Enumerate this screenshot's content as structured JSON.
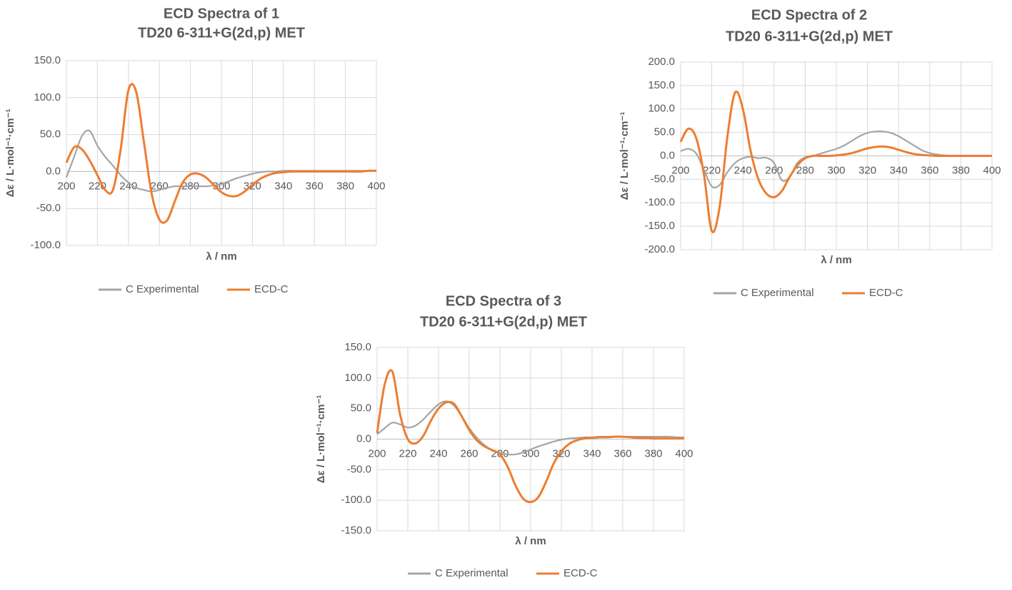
{
  "chart_data": [
    {
      "type": "line",
      "title": "ECD Spectra of 1",
      "subtitle": "TD20 6-311+G(2d,p) MET",
      "x_label": "λ / nm",
      "y_label": "Δε / L·mol⁻¹·cm⁻¹",
      "x": [
        200,
        205,
        210,
        215,
        220,
        225,
        230,
        235,
        240,
        245,
        250,
        255,
        260,
        265,
        270,
        275,
        280,
        285,
        290,
        295,
        300,
        305,
        310,
        315,
        320,
        325,
        330,
        335,
        340,
        345,
        350,
        355,
        360,
        365,
        370,
        375,
        380,
        385,
        390,
        395,
        400
      ],
      "series": [
        {
          "name": "C Experimental",
          "color": "#a5a5a5",
          "values": [
            -8,
            20,
            48,
            55,
            35,
            20,
            8,
            -5,
            -15,
            -22,
            -25,
            -27,
            -25,
            -22,
            -20,
            -20,
            -20,
            -20,
            -20,
            -19,
            -17,
            -13,
            -9,
            -6,
            -3,
            -1,
            0,
            0,
            1,
            1,
            1,
            1,
            1,
            1,
            1,
            1,
            1,
            1,
            1,
            1,
            1
          ]
        },
        {
          "name": "ECD-C",
          "color": "#ed7d31",
          "values": [
            12,
            33,
            30,
            15,
            -5,
            -25,
            -25,
            30,
            110,
            108,
            40,
            -30,
            -65,
            -66,
            -40,
            -15,
            -4,
            -3,
            -8,
            -18,
            -28,
            -33,
            -33,
            -27,
            -18,
            -10,
            -5,
            -2,
            -1,
            0,
            0,
            0,
            0,
            0,
            0,
            0,
            0,
            0,
            0,
            1,
            1
          ]
        }
      ],
      "xlim": [
        200,
        400
      ],
      "xticks": [
        200,
        220,
        240,
        260,
        280,
        300,
        320,
        340,
        360,
        380,
        400
      ],
      "ylim": [
        -100,
        150
      ],
      "yticks": [
        {
          "value": -100,
          "label": "-100.0"
        },
        {
          "value": -50,
          "label": "-50.0"
        },
        {
          "value": 0,
          "label": "0.0"
        },
        {
          "value": 50,
          "label": "50.0"
        },
        {
          "value": 100,
          "label": "100.0"
        },
        {
          "value": 150,
          "label": "150.0"
        }
      ],
      "grid": true,
      "legend": "bottom"
    },
    {
      "type": "line",
      "title": "ECD Spectra of 2",
      "subtitle": "TD20 6-311+G(2d,p) MET",
      "x_label": "λ / nm",
      "y_label": "Δε / L·mol⁻¹·cm⁻¹",
      "x": [
        200,
        205,
        210,
        215,
        220,
        225,
        230,
        235,
        240,
        245,
        250,
        255,
        260,
        265,
        270,
        275,
        280,
        285,
        290,
        295,
        300,
        305,
        310,
        315,
        320,
        325,
        330,
        335,
        340,
        345,
        350,
        355,
        360,
        365,
        370,
        375,
        380,
        385,
        390,
        395,
        400
      ],
      "series": [
        {
          "name": "C Experimental",
          "color": "#a5a5a5",
          "values": [
            10,
            15,
            5,
            -30,
            -65,
            -62,
            -35,
            -15,
            -5,
            -2,
            -5,
            -4,
            -15,
            -52,
            -45,
            -15,
            -3,
            0,
            5,
            10,
            15,
            22,
            32,
            42,
            49,
            52,
            52,
            49,
            42,
            32,
            22,
            12,
            6,
            3,
            1,
            0,
            0,
            0,
            0,
            0,
            0
          ]
        },
        {
          "name": "ECD-C",
          "color": "#ed7d31",
          "values": [
            30,
            58,
            38,
            -40,
            -160,
            -110,
            40,
            135,
            100,
            10,
            -50,
            -80,
            -88,
            -75,
            -45,
            -20,
            -5,
            0,
            0,
            0,
            1,
            3,
            6,
            11,
            16,
            19,
            20,
            18,
            13,
            8,
            4,
            2,
            1,
            0,
            0,
            0,
            0,
            0,
            0,
            0,
            0
          ]
        }
      ],
      "xlim": [
        200,
        400
      ],
      "xticks": [
        200,
        220,
        240,
        260,
        280,
        300,
        320,
        340,
        360,
        380,
        400
      ],
      "ylim": [
        -200,
        200
      ],
      "yticks": [
        {
          "value": -200,
          "label": "-200.0"
        },
        {
          "value": -150,
          "label": "-150.0"
        },
        {
          "value": -100,
          "label": "-100.0"
        },
        {
          "value": -50,
          "label": "-50.0"
        },
        {
          "value": 0,
          "label": "0.0"
        },
        {
          "value": 50,
          "label": "50.0"
        },
        {
          "value": 100,
          "label": "100.0"
        },
        {
          "value": 150,
          "label": "150.0"
        },
        {
          "value": 200,
          "label": "200.0"
        }
      ],
      "grid": true,
      "legend": "bottom"
    },
    {
      "type": "line",
      "title": "ECD Spectra of 3",
      "subtitle": "TD20 6-311+G(2d,p) MET",
      "x_label": "λ / nm",
      "y_label": "Δε / L·mol⁻¹·cm⁻¹",
      "x": [
        200,
        205,
        210,
        215,
        220,
        225,
        230,
        235,
        240,
        245,
        250,
        255,
        260,
        265,
        270,
        275,
        280,
        285,
        290,
        295,
        300,
        305,
        310,
        315,
        320,
        325,
        330,
        335,
        340,
        345,
        350,
        355,
        360,
        365,
        370,
        375,
        380,
        385,
        390,
        395,
        400
      ],
      "series": [
        {
          "name": "C Experimental",
          "color": "#a5a5a5",
          "values": [
            8,
            18,
            27,
            24,
            19,
            22,
            32,
            45,
            57,
            62,
            55,
            38,
            18,
            2,
            -10,
            -18,
            -22,
            -25,
            -25,
            -22,
            -17,
            -12,
            -8,
            -4,
            -1,
            1,
            2,
            3,
            3,
            4,
            4,
            4,
            4,
            4,
            4,
            4,
            4,
            4,
            4,
            3,
            3
          ]
        },
        {
          "name": "ECD-C",
          "color": "#ed7d31",
          "values": [
            10,
            90,
            110,
            40,
            0,
            -7,
            5,
            30,
            50,
            60,
            58,
            38,
            15,
            -2,
            -12,
            -18,
            -25,
            -45,
            -75,
            -97,
            -103,
            -95,
            -70,
            -40,
            -20,
            -8,
            -2,
            1,
            2,
            3,
            3,
            4,
            4,
            3,
            2,
            2,
            1,
            1,
            1,
            1,
            1
          ]
        }
      ],
      "xlim": [
        200,
        400
      ],
      "xticks": [
        200,
        220,
        240,
        260,
        280,
        300,
        320,
        340,
        360,
        380,
        400
      ],
      "ylim": [
        -150,
        150
      ],
      "yticks": [
        {
          "value": -150,
          "label": "-150.0"
        },
        {
          "value": -100,
          "label": "-100.0"
        },
        {
          "value": -50,
          "label": "-50.0"
        },
        {
          "value": 0,
          "label": "0.0"
        },
        {
          "value": 50,
          "label": "50.0"
        },
        {
          "value": 100,
          "label": "100.0"
        },
        {
          "value": 150,
          "label": "150.0"
        }
      ],
      "grid": true,
      "legend": "bottom"
    }
  ]
}
